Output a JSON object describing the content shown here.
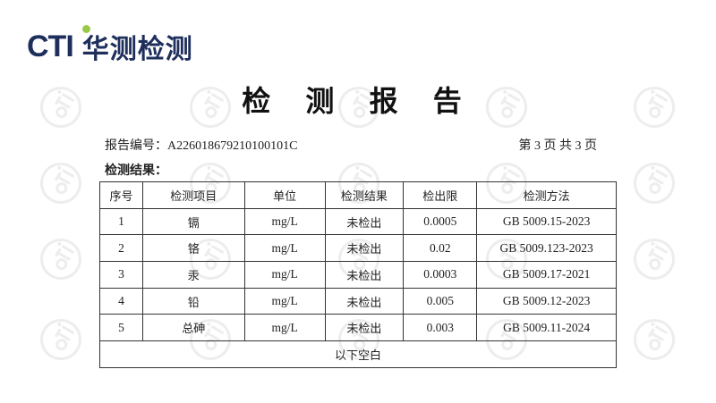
{
  "logo": {
    "brand": "CTI",
    "name_cn": "华测检测",
    "accent": "#9ac94a",
    "primary": "#1f2f5c"
  },
  "watermark": "CTI",
  "title": "检 测 报 告",
  "report_no": "报告编号：A22601867921010010​1C",
  "page_info": "第 3 页  共 3 页",
  "section_title": "检测结果：",
  "table": {
    "headers": [
      "序号",
      "检测项目",
      "单位",
      "检测结果",
      "检出限",
      "检测方法"
    ],
    "rows": [
      [
        "1",
        "镉",
        "mg/L",
        "未检出",
        "0.0005",
        "GB 5009.15-2023"
      ],
      [
        "2",
        "铬",
        "mg/L",
        "未检出",
        "0.02",
        "GB 5009.123-2023"
      ],
      [
        "3",
        "汞",
        "mg/L",
        "未检出",
        "0.0003",
        "GB 5009.17-2021"
      ],
      [
        "4",
        "铅",
        "mg/L",
        "未检出",
        "0.005",
        "GB 5009.12-2023"
      ],
      [
        "5",
        "总砷",
        "mg/L",
        "未检出",
        "0.003",
        "GB 5009.11-2024"
      ]
    ],
    "footer": "以下空白"
  }
}
